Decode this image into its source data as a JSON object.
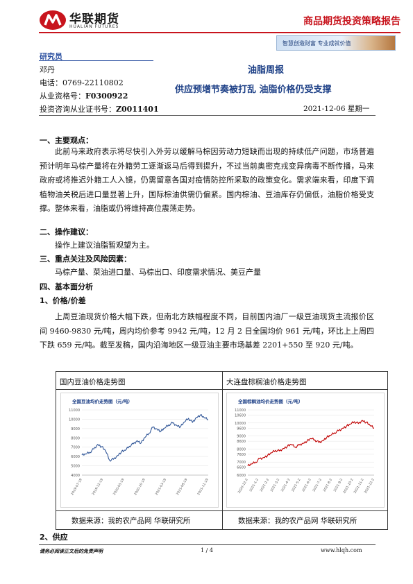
{
  "header": {
    "brand_cn": "华联期货",
    "brand_en": "HUALIAN FUTURES",
    "report_type": "商品期货投资策略报告",
    "banner": "智慧创造财富 专业成就价值",
    "colors": {
      "accent_red": "#c8141d",
      "title_blue": "#1c3f86"
    }
  },
  "researcher": {
    "title": "研究员",
    "name": "邓丹",
    "phone_label": "电话：",
    "phone": "0769-22110802",
    "qual_label": "从业资格号：",
    "qual": "F0300922",
    "consult_label": "投资咨询从业证书号：",
    "consult": "Z0011401"
  },
  "report": {
    "name": "油脂周报",
    "title": "供应预增节奏被打乱 油脂价格仍受支撑",
    "date": "2021-12-06 星期一"
  },
  "sections": {
    "s1": "一、主要观点：",
    "s1_text": "此前马来政府表示将尽快引入外劳以缓解马棕因劳动力短缺而出现的持续低产问题，市场普遍预计明年马棕产量将在外籍劳工逐渐返马后得到提升，不过当前奥密克戎变异病毒不断传播，马来政府或将推迟外籍工人入镜，仍需留意各国对疫情防控所采取的政策变化。需求端来看，印度下调植物油关税后进口量显著上升，国际棕油供需仍偏紧。国内棕油、豆油库存仍偏低，油脂价格受支撑。整体来看，油脂或仍将维持高位震荡走势。",
    "s2": "二、操作建议：",
    "s2_text": "操作上建议油脂暂观望为主。",
    "s3": "三、重点关注及风险因素：",
    "s3_text": "马棕产量、菜油进口量、马棕出口、印度需求情况、美豆产量",
    "s4": "四、基本面分析",
    "s4_1": "1、价格/价差",
    "s4_1_text": "上周豆油现货价格大幅下跌，但南北方跌幅程度不同，目前国内油厂一级豆油现货主流报价区间 9460-9830 元/吨，周内均价参考 9942 元/吨，12 月 2 日全国均价 961 元/吨，环比上上周四下跌 659 元/吨。截至发稿，国内沿海地区一级豆油主要市场基差 2201+550 至 920 元/吨。",
    "s4_2": "2、供应"
  },
  "charts": {
    "left_header": "国内豆油价格走势图",
    "right_header": "大连盘棕榈油价格走势图",
    "left_source": "数据来源：我的农产品网 华联研究所",
    "right_source": "数据来源：我的农产品网 华联研究所"
  },
  "chart_data": [
    {
      "type": "line",
      "title": "全国豆油均价走势图（元/吨）",
      "ylim": [
        4000,
        11000
      ],
      "yticks": [
        "4000",
        "5000",
        "6000",
        "7000",
        "8000",
        "9000",
        "10000",
        "11000"
      ],
      "xticks": [
        "2019-07-19",
        "2019-12-19",
        "2020-05-19",
        "2020-10-19",
        "2021-03-19",
        "2021-08-19",
        "2021-11-19"
      ],
      "series": [
        {
          "color": "#2f5597",
          "values": [
            6150,
            6250,
            6450,
            6800,
            7300,
            7050,
            6600,
            5600,
            5700,
            6100,
            6500,
            6650,
            7100,
            7350,
            7700,
            7450,
            8050,
            8500,
            9150,
            8950,
            8700,
            9050,
            9400,
            9600,
            9350,
            9200,
            9700,
            10100,
            9650,
            10200,
            10450,
            10150,
            9950
          ]
        }
      ]
    },
    {
      "type": "line",
      "title": "全国棕榈油均价走势图（元/吨）",
      "ylim": [
        6000,
        11000
      ],
      "yticks": [
        "6000",
        "6600",
        "7000",
        "7600",
        "8000",
        "8600",
        "9000",
        "9600",
        "10000",
        "10600",
        "11000"
      ],
      "xticks": [
        "2020-12-2",
        "2021-1-2",
        "2021-2-2",
        "2021-3-2",
        "2021-4-2",
        "2021-5-2",
        "2021-6-2",
        "2021-7-2",
        "2021-8-2",
        "2021-9-2",
        "2021-10-2",
        "2021-11-2",
        "2021-12-2"
      ],
      "series": [
        {
          "color": "#c00000",
          "values": [
            6700,
            6850,
            7000,
            7250,
            7350,
            7500,
            7700,
            7900,
            7850,
            8050,
            8200,
            8350,
            8150,
            8300,
            8450,
            8600,
            8800,
            8700,
            8500,
            8650,
            8900,
            9050,
            9250,
            9400,
            9600,
            9750,
            9900,
            10100,
            9950,
            10200,
            10050,
            9800,
            9600
          ]
        }
      ]
    }
  ],
  "footer": {
    "disclaimer": "请务必阅读正文后的免责声明",
    "page": "1 / 4",
    "url": "www.hlqh.com"
  }
}
